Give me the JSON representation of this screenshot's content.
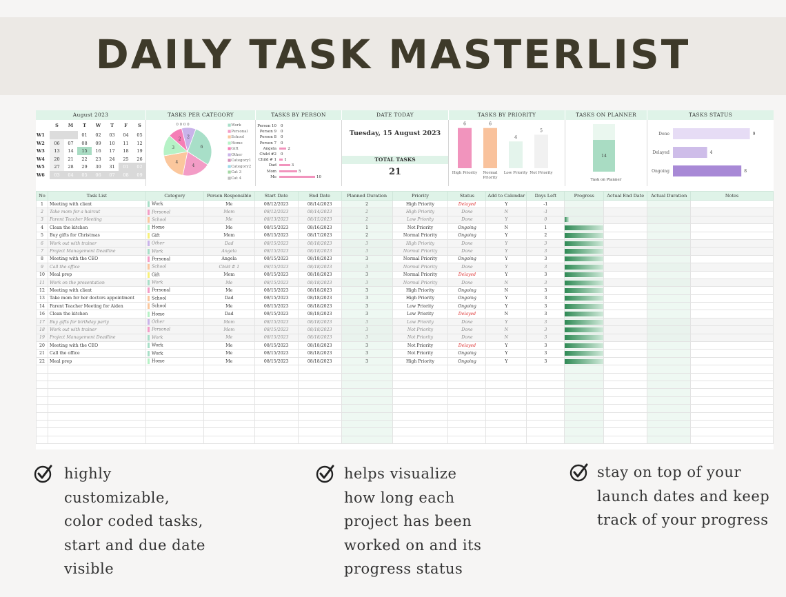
{
  "title": "DAILY TASK MASTERLIST",
  "calendar": {
    "header": "August 2023",
    "days": [
      "S",
      "M",
      "T",
      "W",
      "T",
      "F",
      "S"
    ],
    "weeks": [
      {
        "label": "W1",
        "dates": [
          "",
          "",
          "01",
          "02",
          "03",
          "04",
          "05"
        ]
      },
      {
        "label": "W2",
        "dates": [
          "06",
          "07",
          "08",
          "09",
          "10",
          "11",
          "12"
        ]
      },
      {
        "label": "W3",
        "dates": [
          "13",
          "14",
          "15",
          "16",
          "17",
          "18",
          "19"
        ]
      },
      {
        "label": "W4",
        "dates": [
          "20",
          "21",
          "22",
          "23",
          "24",
          "25",
          "26"
        ]
      },
      {
        "label": "W5",
        "dates": [
          "27",
          "28",
          "29",
          "30",
          "31",
          "01",
          "02"
        ]
      },
      {
        "label": "W6",
        "dates": [
          "03",
          "04",
          "05",
          "06",
          "07",
          "08",
          "09"
        ]
      }
    ],
    "highlight": "15"
  },
  "panels": {
    "category": "TASKS PER CATEGORY",
    "person": "TASKS BY PERSON",
    "date": "DATE TODAY",
    "priority": "TASKS BY PRIORITY",
    "planner": "TASKS ON PLANNER",
    "status": "TASKS STATUS"
  },
  "category_chart": {
    "slices": [
      {
        "name": "Work",
        "value": 6,
        "color": "#a8dfc8"
      },
      {
        "name": "Personal",
        "value": 4,
        "color": "#f39cc6"
      },
      {
        "name": "School",
        "value": 4,
        "color": "#fbc79d"
      },
      {
        "name": "Home",
        "value": 3,
        "color": "#b6f2c6"
      },
      {
        "name": "Gift",
        "value": 2,
        "color": "#f57eb6"
      },
      {
        "name": "Other",
        "value": 2,
        "color": "#c9b3ea"
      },
      {
        "name": "Category1",
        "value": 0,
        "color": "#d38fb8"
      },
      {
        "name": "Category2",
        "value": 0,
        "color": "#9edbe8"
      },
      {
        "name": "Cat 3",
        "value": 0,
        "color": "#a4d8a4"
      },
      {
        "name": "Cat 4",
        "value": 0,
        "color": "#bfbfbf"
      }
    ],
    "labels": [
      "6",
      "4",
      "4",
      "3",
      "2",
      "2",
      "0",
      "0",
      "0",
      "0"
    ]
  },
  "person_chart": {
    "rows": [
      {
        "name": "Person 10",
        "value": 0
      },
      {
        "name": "Person 9",
        "value": 0
      },
      {
        "name": "Person 8",
        "value": 0
      },
      {
        "name": "Person 7",
        "value": 0
      },
      {
        "name": "Angela",
        "value": 2
      },
      {
        "name": "Child #2",
        "value": 0
      },
      {
        "name": "Child # 1",
        "value": 1
      },
      {
        "name": "Dad",
        "value": 3
      },
      {
        "name": "Mom",
        "value": 5
      },
      {
        "name": "Me",
        "value": 10
      }
    ]
  },
  "date_today": "Tuesday, 15 August 2023",
  "total_tasks_label": "TOTAL TASKS",
  "total_tasks": "21",
  "priority_chart": {
    "bars": [
      {
        "name": "High Priority",
        "value": 6,
        "color": "#f194bd"
      },
      {
        "name": "Normal Priority",
        "value": 6,
        "color": "#f9c29c"
      },
      {
        "name": "Low Priority",
        "value": 4,
        "color": "#e4f4ec"
      },
      {
        "name": "Not Priority",
        "value": 5,
        "color": "#f1f1f1"
      }
    ],
    "max": 7
  },
  "planner_chart": {
    "value": 14,
    "total": 21,
    "label": "Task on Planner",
    "color": "#a9dcc3"
  },
  "status_chart": {
    "bars": [
      {
        "name": "Done",
        "value": 9,
        "color": "#e6dcf5"
      },
      {
        "name": "Delayed",
        "value": 4,
        "color": "#cebde9"
      },
      {
        "name": "Ongoing",
        "value": 8,
        "color": "#a889d6"
      }
    ],
    "max": 10
  },
  "columns": [
    "No",
    "Task List",
    "Category",
    "Person Responsible",
    "Start Date",
    "End Date",
    "Planned Duration",
    "Priority",
    "Status",
    "Add to Calendar",
    "Days Left",
    "Progress",
    "Actual End Date",
    "Actual Duration",
    "Notes"
  ],
  "tasks": [
    {
      "no": "1",
      "task": "Meeting with client",
      "cat": "Work",
      "color": "#a8dfc8",
      "person": "Me",
      "start": "08/12/2023",
      "end": "08/14/2023",
      "dur": "2",
      "priority": "High Priority",
      "status": "Delayed",
      "cal": "Y",
      "left": "-1",
      "progress": 0,
      "done": false
    },
    {
      "no": "2",
      "task": "Take mom for a haircut",
      "cat": "Personal",
      "color": "#f39cc6",
      "person": "Mom",
      "start": "08/12/2023",
      "end": "08/14/2023",
      "dur": "2",
      "priority": "High Priority",
      "status": "Done",
      "cal": "N",
      "left": "-1",
      "progress": 0,
      "done": true
    },
    {
      "no": "3",
      "task": "Parent Teacher Meeting",
      "cat": "School",
      "color": "#fbc79d",
      "person": "Me",
      "start": "08/13/2023",
      "end": "08/15/2023",
      "dur": "2",
      "priority": "Low Priority",
      "status": "Done",
      "cal": "Y",
      "left": "0",
      "progress": 0.1,
      "done": true
    },
    {
      "no": "4",
      "task": "Clean the kitchen",
      "cat": "Home",
      "color": "#b6f2c6",
      "person": "Me",
      "start": "08/15/2023",
      "end": "08/16/2023",
      "dur": "1",
      "priority": "Not Priority",
      "status": "Ongoing",
      "cal": "N",
      "left": "1",
      "progress": 1,
      "done": false
    },
    {
      "no": "5",
      "task": "Buy gifts for Christmas",
      "cat": "Gift",
      "color": "#f7f07a",
      "person": "Mom",
      "start": "08/15/2023",
      "end": "08/17/2023",
      "dur": "2",
      "priority": "Normal Priority",
      "status": "Ongoing",
      "cal": "Y",
      "left": "2",
      "progress": 1,
      "done": false
    },
    {
      "no": "6",
      "task": "Work out with trainer",
      "cat": "Other",
      "color": "#c9b3ea",
      "person": "Dad",
      "start": "08/15/2023",
      "end": "08/18/2023",
      "dur": "3",
      "priority": "High Priority",
      "status": "Done",
      "cal": "Y",
      "left": "3",
      "progress": 1,
      "done": true
    },
    {
      "no": "7",
      "task": "Project Management Deadline",
      "cat": "Work",
      "color": "#a8dfc8",
      "person": "Angela",
      "start": "08/15/2023",
      "end": "08/18/2023",
      "dur": "3",
      "priority": "Normal Priority",
      "status": "Done",
      "cal": "Y",
      "left": "3",
      "progress": 1,
      "done": true
    },
    {
      "no": "8",
      "task": "Meeting with the CEO",
      "cat": "Personal",
      "color": "#f39cc6",
      "person": "Angela",
      "start": "08/15/2023",
      "end": "08/18/2023",
      "dur": "3",
      "priority": "Normal Priority",
      "status": "Ongoing",
      "cal": "Y",
      "left": "3",
      "progress": 1,
      "done": false
    },
    {
      "no": "9",
      "task": "Call the office",
      "cat": "School",
      "color": "#fbc79d",
      "person": "Child # 1",
      "start": "08/15/2023",
      "end": "08/18/2023",
      "dur": "3",
      "priority": "Normal Priority",
      "status": "Done",
      "cal": "Y",
      "left": "3",
      "progress": 1,
      "done": true
    },
    {
      "no": "10",
      "task": "Meal prep",
      "cat": "Gift",
      "color": "#f7f07a",
      "person": "Mom",
      "start": "08/15/2023",
      "end": "08/18/2023",
      "dur": "3",
      "priority": "Normal Priority",
      "status": "Delayed",
      "cal": "Y",
      "left": "3",
      "progress": 1,
      "done": false
    },
    {
      "no": "11",
      "task": "Work on the presentation",
      "cat": "Work",
      "color": "#a8dfc8",
      "person": "Me",
      "start": "08/15/2023",
      "end": "08/18/2023",
      "dur": "3",
      "priority": "Normal Priority",
      "status": "Done",
      "cal": "N",
      "left": "3",
      "progress": 1,
      "done": true
    },
    {
      "no": "12",
      "task": "Meeting with client",
      "cat": "Personal",
      "color": "#f39cc6",
      "person": "Me",
      "start": "08/15/2023",
      "end": "08/18/2023",
      "dur": "3",
      "priority": "High Priority",
      "status": "Ongoing",
      "cal": "N",
      "left": "3",
      "progress": 1,
      "done": false
    },
    {
      "no": "13",
      "task": "Take mom for her doctors appointment",
      "cat": "School",
      "color": "#fbc79d",
      "person": "Dad",
      "start": "08/15/2023",
      "end": "08/18/2023",
      "dur": "3",
      "priority": "High Priority",
      "status": "Ongoing",
      "cal": "Y",
      "left": "3",
      "progress": 1,
      "done": false
    },
    {
      "no": "14",
      "task": "Parent Teacher Meeting for Aiden",
      "cat": "School",
      "color": "#fbc79d",
      "person": "Me",
      "start": "08/15/2023",
      "end": "08/18/2023",
      "dur": "3",
      "priority": "Low Priority",
      "status": "Ongoing",
      "cal": "Y",
      "left": "3",
      "progress": 1,
      "done": false
    },
    {
      "no": "16",
      "task": "Clean the kitchen",
      "cat": "Home",
      "color": "#b6f2c6",
      "person": "Dad",
      "start": "08/15/2023",
      "end": "08/18/2023",
      "dur": "3",
      "priority": "Low Priority",
      "status": "Delayed",
      "cal": "N",
      "left": "3",
      "progress": 1,
      "done": false
    },
    {
      "no": "17",
      "task": "Buy gifts for birthday party",
      "cat": "Other",
      "color": "#c9b3ea",
      "person": "Mom",
      "start": "08/15/2023",
      "end": "08/18/2023",
      "dur": "3",
      "priority": "Low Priority",
      "status": "Done",
      "cal": "Y",
      "left": "3",
      "progress": 1,
      "done": true
    },
    {
      "no": "18",
      "task": "Work out with trainer",
      "cat": "Personal",
      "color": "#f39cc6",
      "person": "Mom",
      "start": "08/15/2023",
      "end": "08/18/2023",
      "dur": "3",
      "priority": "Not Priority",
      "status": "Done",
      "cal": "N",
      "left": "3",
      "progress": 1,
      "done": true
    },
    {
      "no": "19",
      "task": "Project Management Deadline",
      "cat": "Work",
      "color": "#a8dfc8",
      "person": "Me",
      "start": "08/15/2023",
      "end": "08/18/2023",
      "dur": "3",
      "priority": "Not Priority",
      "status": "Done",
      "cal": "N",
      "left": "3",
      "progress": 1,
      "done": true
    },
    {
      "no": "20",
      "task": "Meeting with the CEO",
      "cat": "Work",
      "color": "#a8dfc8",
      "person": "Me",
      "start": "08/15/2023",
      "end": "08/18/2023",
      "dur": "3",
      "priority": "Not Priority",
      "status": "Delayed",
      "cal": "Y",
      "left": "3",
      "progress": 1,
      "done": false
    },
    {
      "no": "21",
      "task": "Call the office",
      "cat": "Work",
      "color": "#a8dfc8",
      "person": "Me",
      "start": "08/15/2023",
      "end": "08/18/2023",
      "dur": "3",
      "priority": "Not Priority",
      "status": "Ongoing",
      "cal": "Y",
      "left": "3",
      "progress": 1,
      "done": false
    },
    {
      "no": "22",
      "task": "Meal prep",
      "cat": "Home",
      "color": "#b6f2c6",
      "person": "Me",
      "start": "08/15/2023",
      "end": "08/18/2023",
      "dur": "3",
      "priority": "High Priority",
      "status": "Ongoing",
      "cal": "Y",
      "left": "3",
      "progress": 1,
      "done": false
    }
  ],
  "empty_rows": 10,
  "bullets": [
    {
      "lines": [
        "highly",
        "customizable,",
        "color coded tasks,",
        "start and due date",
        "visible"
      ]
    },
    {
      "lines": [
        "helps visualize",
        "how long each",
        "project has been",
        "worked on and its",
        "progress status"
      ]
    },
    {
      "lines": [
        "stay on top of your",
        "launch dates and keep",
        "track of your progress"
      ]
    }
  ]
}
